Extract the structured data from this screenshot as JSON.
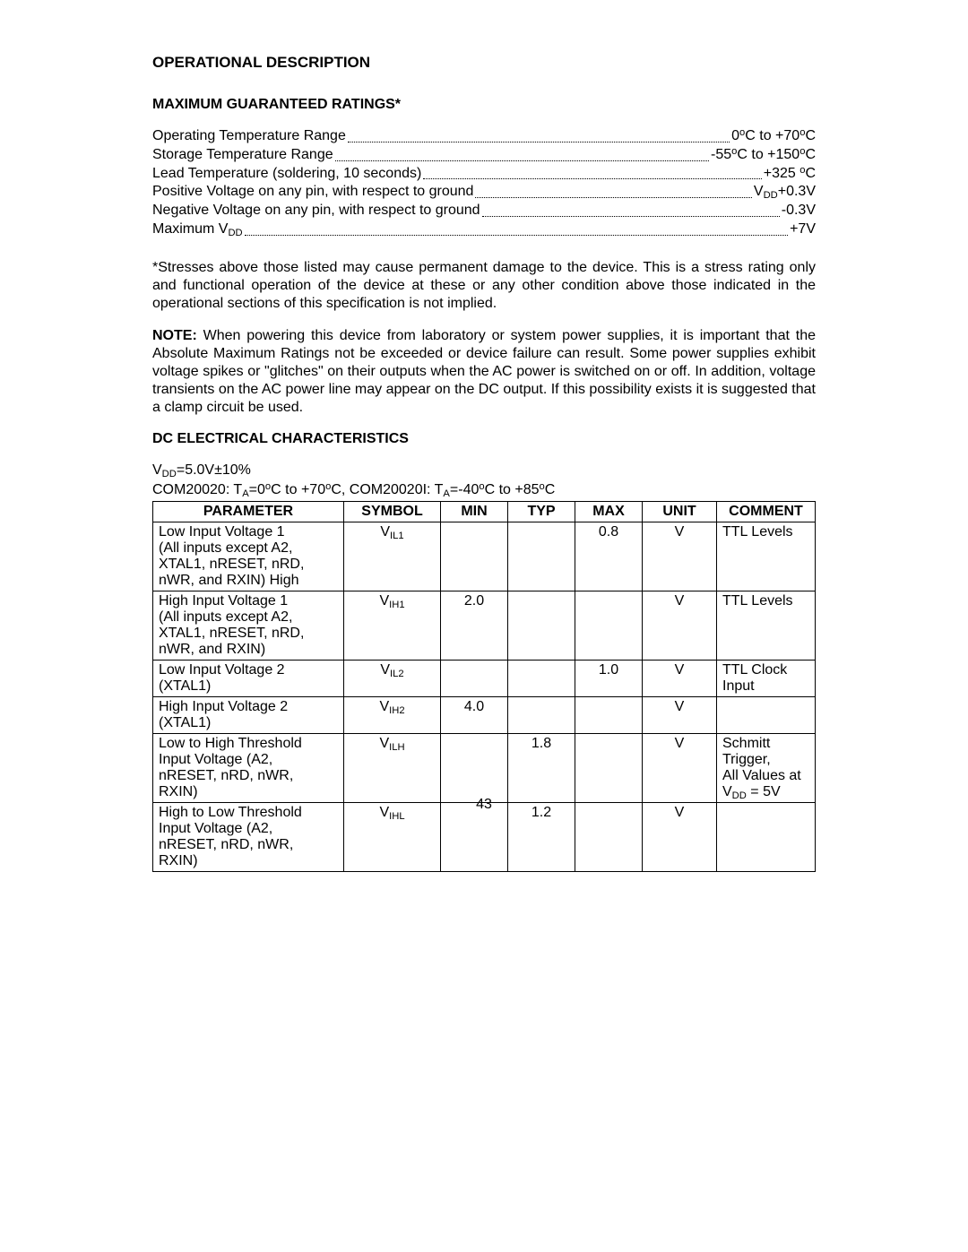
{
  "title": "OPERATIONAL DESCRIPTION",
  "ratingsHeading": "MAXIMUM GUARANTEED RATINGS*",
  "ratings": [
    {
      "label": "Operating Temperature Range",
      "value": "0°C  to +70°C",
      "labelHtml": "Operating Temperature Range",
      "valueHtml": " 0<sup>o</sup>C  to +70<sup>o</sup>C"
    },
    {
      "label": "Storage Temperature Range",
      "value": "-55°C  to +150°C",
      "labelHtml": "Storage Temperature Range",
      "valueHtml": " -55<sup>o</sup>C  to +150<sup>o</sup>C"
    },
    {
      "label": "Lead Temperature (soldering, 10 seconds)",
      "value": "+325 °C",
      "labelHtml": "Lead Temperature (soldering, 10 seconds) ",
      "valueHtml": " +325 <sup>o</sup>C"
    },
    {
      "label": "Positive Voltage on any pin, with respect to ground",
      "value": "VDD+0.3V",
      "labelHtml": "Positive Voltage on any pin, with respect to ground ",
      "valueHtml": "V<sub>DD</sub>+0.3V"
    },
    {
      "label": "Negative Voltage on any pin, with respect to ground",
      "value": "-0.3V",
      "labelHtml": "Negative Voltage on any pin, with respect to ground ",
      "valueHtml": " -0.3V"
    },
    {
      "label": "Maximum VDD",
      "value": "+7V",
      "labelHtml": "Maximum V<sub>DD</sub> ",
      "valueHtml": " +7V"
    }
  ],
  "stressNote": "*Stresses above those listed may cause permanent damage to the device.  This is a stress rating  only and functional operation of the device at these or any other condition above those indicated in the operational sections of this specification is not implied.",
  "powerNoteLabel": "NOTE:",
  "powerNote": " When powering this device from laboratory or system power supplies, it is important that the Absolute Maximum Ratings not be exceeded or device failure can result.  Some power supplies exhibit voltage spikes or \"glitches\" on their outputs when the AC power is switched on or off.  In addition, voltage transients on the AC power line may appear on the DC output.  If this possibility exists it is suggested that a clamp circuit be used.",
  "dcHeading": "DC ELECTRICAL CHARACTERISTICS",
  "conditions": {
    "line1Html": "V<sub>DD</sub>=5.0V±10%",
    "line2Html": "COM20020: T<sub>A</sub>=0<sup>o</sup>C to +70<sup>o</sup>C,  COM20020I: T<sub>A</sub>=-40<sup>o</sup>C to +85<sup>o</sup>C"
  },
  "table": {
    "headers": [
      "PARAMETER",
      "SYMBOL",
      "MIN",
      "TYP",
      "MAX",
      "UNIT",
      "COMMENT"
    ],
    "groups": [
      {
        "rows": [
          {
            "param": "Low Input Voltage 1 (All inputs except A2, XTAL1, nRESET, nRD, nWR, and RXIN) High",
            "paramHtml": "Low Input Voltage 1<br>(All inputs except A2,<br>XTAL1, nRESET, nRD,<br>nWR, and RXIN) High",
            "symbolHtml": "V<sub>IL1</sub>",
            "min": "",
            "typ": "",
            "max": "0.8",
            "unit": "V",
            "comment": "TTL Levels"
          },
          {
            "param": "High Input Voltage 1 (All inputs except A2, XTAL1, nRESET, nRD, nWR, and RXIN)",
            "paramHtml": "High Input Voltage 1<br> (All inputs except A2,<br> XTAL1, nRESET, nRD,<br>nWR, and RXIN)",
            "symbolHtml": "V<sub>IH1</sub>",
            "min": "2.0",
            "typ": "",
            "max": "",
            "unit": "V",
            "comment": "TTL Levels"
          }
        ]
      },
      {
        "rows": [
          {
            "param": "Low Input Voltage 2 (XTAL1)",
            "paramHtml": "Low Input Voltage 2<br>(XTAL1)",
            "symbolHtml": "V<sub>IL2</sub>",
            "min": "",
            "typ": "",
            "max": "1.0",
            "unit": "V",
            "comment": "TTL Clock Input"
          },
          {
            "param": "High Input Voltage 2 (XTAL1)",
            "paramHtml": "High Input Voltage 2<br>(XTAL1)",
            "symbolHtml": "V<sub>IH2</sub>",
            "min": "4.0",
            "typ": "",
            "max": "",
            "unit": "V",
            "comment": ""
          }
        ]
      },
      {
        "rows": [
          {
            "param": "Low to High Threshold Input Voltage (A2, nRESET, nRD, nWR, RXIN)",
            "paramHtml": "Low to High Threshold<br>Input Voltage (A2,<br>nRESET, nRD, nWR,<br>RXIN)",
            "symbolHtml": "V<sub>ILH</sub>",
            "min": "",
            "typ": "1.8",
            "max": "",
            "unit": "V",
            "commentHtml": "Schmitt Trigger,<br>All Values at V<sub>DD</sub> = 5V"
          },
          {
            "param": "High to Low Threshold Input Voltage (A2, nRESET, nRD, nWR, RXIN)",
            "paramHtml": "High to Low Threshold<br>Input Voltage (A2,<br>nRESET, nRD, nWR,<br>RXIN)",
            "symbolHtml": "V<sub>IHL</sub>",
            "min": "",
            "typ": "1.2",
            "max": "",
            "unit": "V",
            "comment": ""
          }
        ]
      }
    ]
  },
  "pageNumber": "43"
}
